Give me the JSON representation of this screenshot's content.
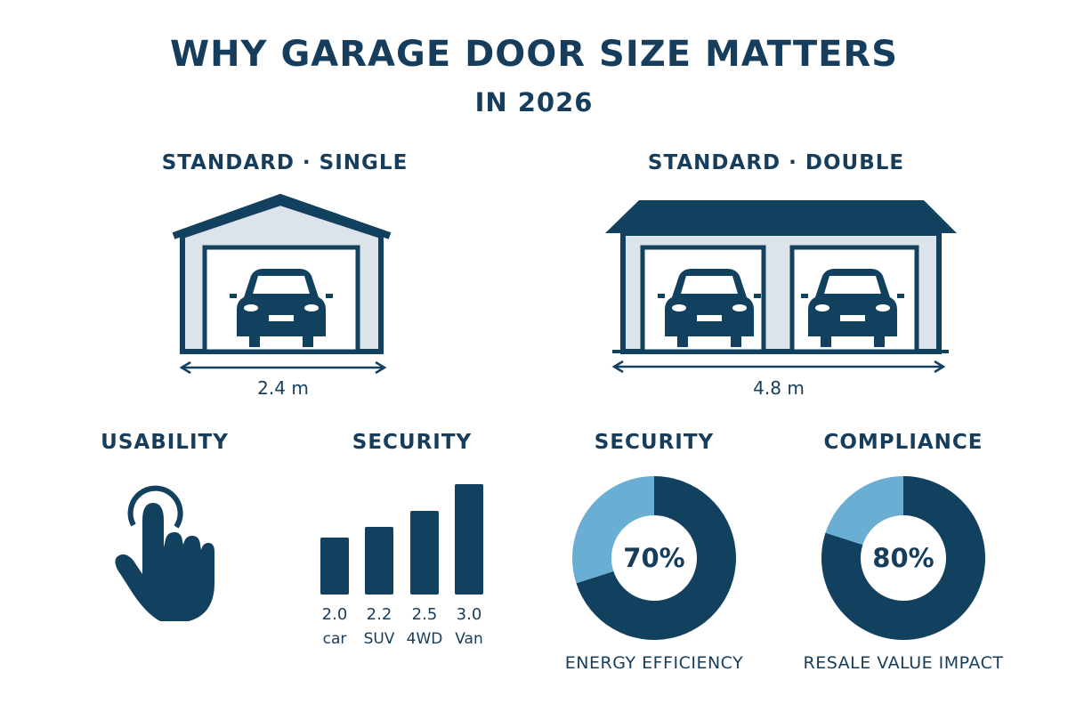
{
  "title": "WHY GARAGE DOOR SIZE MATTERS",
  "subtitle": "IN 2026",
  "colors": {
    "dark": "#12405f",
    "light": "#6aaed3",
    "wall": "#dde3ea"
  },
  "garages": [
    {
      "heading": "STANDARD · SINGLE",
      "width_label": "2.4 m",
      "icon": "single-garage-icon"
    },
    {
      "heading": "STANDARD · DOUBLE",
      "width_label": "4.8 m",
      "icon": "double-garage-icon"
    }
  ],
  "sections": {
    "usability": {
      "heading": "USABILITY",
      "icon": "hand-pointer-icon"
    },
    "security_bars": {
      "heading": "SECURITY"
    },
    "security_donut": {
      "heading": "SECURITY",
      "label": "ENERGY EFFICIENCY"
    },
    "compliance": {
      "heading": "COMPLIANCE",
      "label": "RESALE VALUE IMPACT"
    }
  },
  "chart_data": [
    {
      "type": "bar",
      "categories": [
        "car",
        "SUV",
        "4WD",
        "Van"
      ],
      "values": [
        2.0,
        2.2,
        2.5,
        3.0
      ],
      "value_labels": [
        "2.0",
        "2.2",
        "2.5",
        "3.0"
      ]
    },
    {
      "type": "pie",
      "donut": true,
      "values": [
        70,
        30
      ],
      "center_label": "70%"
    },
    {
      "type": "pie",
      "donut": true,
      "values": [
        80,
        20
      ],
      "center_label": "80%"
    }
  ]
}
